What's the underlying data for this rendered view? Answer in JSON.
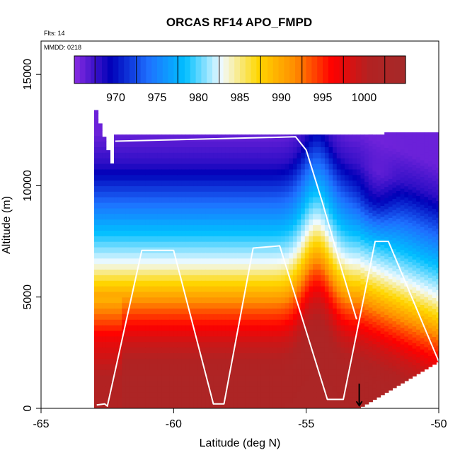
{
  "chart_data": {
    "type": "heatmap",
    "title": "ORCAS RF14 APO_FMPD",
    "xlabel": "Latitude (deg N)",
    "ylabel": "Altitude (m)",
    "xlim": [
      -65,
      -50
    ],
    "ylim": [
      0,
      16500
    ],
    "x_ticks": [
      -65,
      -60,
      -55,
      -50
    ],
    "x_tick_labels": [
      "-65",
      "-60",
      "-55",
      "-50"
    ],
    "y_ticks": [
      0,
      5000,
      10000,
      15000
    ],
    "y_tick_labels": [
      "0",
      "5000",
      "10000",
      "15000"
    ],
    "annotations": {
      "flights": "Flts: 14",
      "mmdd": "MMDD: 0218"
    },
    "colorbar": {
      "range": [
        965,
        1005
      ],
      "ticks": [
        970,
        975,
        980,
        985,
        990,
        995,
        1000
      ],
      "tick_labels": [
        "970",
        "975",
        "980",
        "985",
        "990",
        "995",
        "1000"
      ],
      "stops": [
        "#8a2be2",
        "#0000b8",
        "#1e6fff",
        "#00bfff",
        "#f2fbff",
        "#ffd700",
        "#ff8c00",
        "#ff0000",
        "#b22222",
        "#a52a2a"
      ]
    },
    "field_levels": [
      {
        "alt": 0,
        "value": 1002.5
      },
      {
        "alt": 1500,
        "value": 1002
      },
      {
        "alt": 3000,
        "value": 999
      },
      {
        "alt": 4500,
        "value": 993
      },
      {
        "alt": 5500,
        "value": 988
      },
      {
        "alt": 6500,
        "value": 983
      },
      {
        "alt": 8000,
        "value": 978
      },
      {
        "alt": 9500,
        "value": 973
      },
      {
        "alt": 11000,
        "value": 968
      },
      {
        "alt": 12400,
        "value": 966
      }
    ],
    "track_series": {
      "name": "flight track",
      "points": [
        [
          -62.9,
          150
        ],
        [
          -62.6,
          200
        ],
        [
          -62.5,
          100
        ],
        [
          -61.2,
          7100
        ],
        [
          -60.0,
          7100
        ],
        [
          -58.5,
          200
        ],
        [
          -58.1,
          200
        ],
        [
          -57.0,
          7200
        ],
        [
          -56.0,
          7300
        ],
        [
          -54.2,
          400
        ],
        [
          -53.6,
          400
        ],
        [
          -52.4,
          7500
        ],
        [
          -51.9,
          7500
        ],
        [
          -50.0,
          2100
        ]
      ]
    },
    "upper_track_series": {
      "name": "upper leg",
      "points": [
        [
          -62.2,
          12000
        ],
        [
          -55.4,
          12200
        ],
        [
          -55.0,
          11600
        ],
        [
          -54.4,
          9300
        ],
        [
          -53.6,
          6000
        ],
        [
          -53.1,
          4000
        ]
      ]
    },
    "marker": {
      "x": -53.0,
      "y": 600,
      "kind": "down-arrow"
    }
  }
}
